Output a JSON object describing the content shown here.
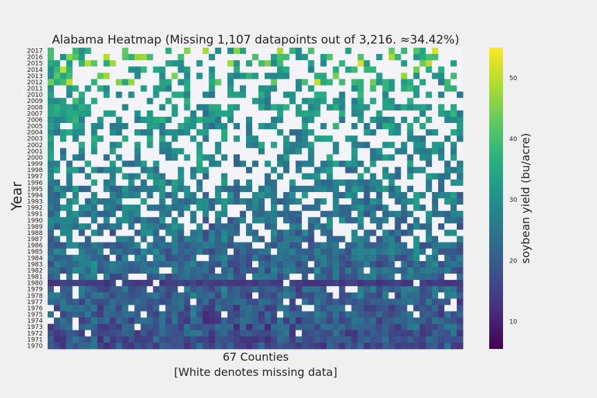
{
  "chart_data": {
    "type": "heatmap",
    "title": "Alabama Heatmap (Missing 1,107 datapoints out of 3,216. ≈34.42%)",
    "ylabel": "Year",
    "xlabel_line1": "67 Counties",
    "xlabel_line2": "[White denotes missing data]",
    "colorbar_label": "soybean yield (bu/acre)",
    "colorbar_ticks": [
      10,
      20,
      30,
      40,
      50
    ],
    "colorbar_range": [
      5.5,
      55
    ],
    "n_counties": 67,
    "years": [
      2017,
      2016,
      2015,
      2014,
      2013,
      2012,
      2011,
      2010,
      2009,
      2008,
      2007,
      2006,
      2005,
      2004,
      2003,
      2002,
      2001,
      2000,
      1999,
      1998,
      1997,
      1996,
      1995,
      1994,
      1993,
      1992,
      1991,
      1990,
      1989,
      1988,
      1987,
      1986,
      1985,
      1984,
      1983,
      1982,
      1981,
      1980,
      1979,
      1978,
      1977,
      1976,
      1975,
      1974,
      1973,
      1972,
      1971,
      1970
    ],
    "missing_color": "#f4f4f8",
    "colormap": "viridis"
  }
}
